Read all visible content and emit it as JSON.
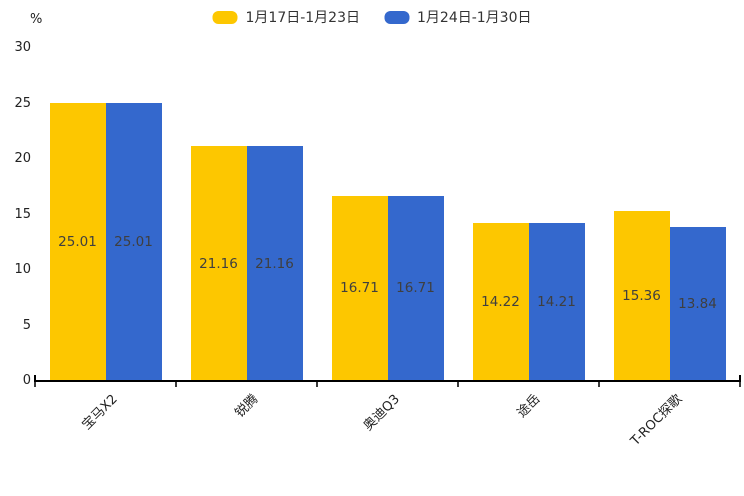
{
  "chart_data": {
    "type": "bar",
    "categories": [
      "宝马X2",
      "锐腾",
      "奥迪Q3",
      "途岳",
      "T-ROC探歌"
    ],
    "series": [
      {
        "name": "1月17日-1月23日",
        "color": "#FDC700",
        "values": [
          25.01,
          21.16,
          16.71,
          14.22,
          15.36
        ]
      },
      {
        "name": "1月24日-1月30日",
        "color": "#3468CD",
        "values": [
          25.01,
          21.16,
          16.71,
          14.21,
          13.84
        ]
      }
    ],
    "title": "",
    "xlabel": "",
    "ylabel": "%",
    "ylim": [
      0,
      30
    ],
    "yticks": [
      0,
      5,
      10,
      15,
      20,
      25,
      30
    ],
    "grid": false,
    "legend_position": "top-center",
    "value_labels": "inside-middle",
    "value_label_color": "#3f3f3f",
    "axis_line_color": "#000000",
    "tick_text_color": "#222222",
    "xtick_rotation_deg": 45
  }
}
